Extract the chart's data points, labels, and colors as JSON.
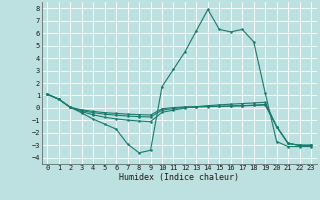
{
  "xlabel": "Humidex (Indice chaleur)",
  "xlim": [
    -0.5,
    23.5
  ],
  "ylim": [
    -4.5,
    8.5
  ],
  "xticks": [
    0,
    1,
    2,
    3,
    4,
    5,
    6,
    7,
    8,
    9,
    10,
    11,
    12,
    13,
    14,
    15,
    16,
    17,
    18,
    19,
    20,
    21,
    22,
    23
  ],
  "yticks": [
    -4,
    -3,
    -2,
    -1,
    0,
    1,
    2,
    3,
    4,
    5,
    6,
    7,
    8
  ],
  "bg_color": "#bde0e0",
  "line_color": "#1a7a6e",
  "grid_color": "#ffffff",
  "line1_x": [
    0,
    1,
    2,
    3,
    4,
    5,
    6,
    7,
    8,
    9,
    10,
    11,
    12,
    13,
    14,
    15,
    16,
    17,
    18,
    19,
    20,
    21,
    22,
    23
  ],
  "line1_y": [
    1.1,
    0.7,
    0.05,
    -0.4,
    -0.9,
    -1.3,
    -1.7,
    -2.9,
    -3.6,
    -3.4,
    1.7,
    3.1,
    4.5,
    6.2,
    7.9,
    6.3,
    6.1,
    6.3,
    5.3,
    1.2,
    -2.7,
    -3.1,
    -3.1,
    -3.1
  ],
  "line2_x": [
    0,
    1,
    2,
    3,
    4,
    5,
    6,
    7,
    8,
    9,
    10,
    11,
    12,
    13,
    14,
    15,
    16,
    17,
    18,
    19,
    20,
    21,
    22,
    23
  ],
  "line2_y": [
    1.1,
    0.7,
    0.05,
    -0.3,
    -0.55,
    -0.75,
    -0.88,
    -0.98,
    -1.05,
    -1.1,
    -0.35,
    -0.18,
    0.0,
    0.1,
    0.18,
    0.25,
    0.3,
    0.35,
    0.4,
    0.45,
    -1.5,
    -2.85,
    -3.0,
    -3.0
  ],
  "line3_x": [
    0,
    1,
    2,
    3,
    4,
    5,
    6,
    7,
    8,
    9,
    10,
    11,
    12,
    13,
    14,
    15,
    16,
    17,
    18,
    19,
    20,
    21,
    22,
    23
  ],
  "line3_y": [
    1.1,
    0.7,
    0.05,
    -0.22,
    -0.38,
    -0.5,
    -0.58,
    -0.65,
    -0.7,
    -0.73,
    -0.18,
    -0.05,
    0.05,
    0.08,
    0.1,
    0.12,
    0.15,
    0.18,
    0.22,
    0.28,
    -1.5,
    -2.85,
    -3.0,
    -3.0
  ],
  "line4_x": [
    0,
    1,
    2,
    3,
    4,
    5,
    6,
    7,
    8,
    9,
    10,
    11,
    12,
    13,
    14,
    15,
    16,
    17,
    18,
    19,
    20,
    21,
    22,
    23
  ],
  "line4_y": [
    1.1,
    0.7,
    0.05,
    -0.15,
    -0.28,
    -0.38,
    -0.44,
    -0.5,
    -0.54,
    -0.57,
    -0.07,
    0.03,
    0.08,
    0.1,
    0.12,
    0.13,
    0.15,
    0.17,
    0.2,
    0.23,
    -1.5,
    -2.85,
    -3.0,
    -3.0
  ]
}
